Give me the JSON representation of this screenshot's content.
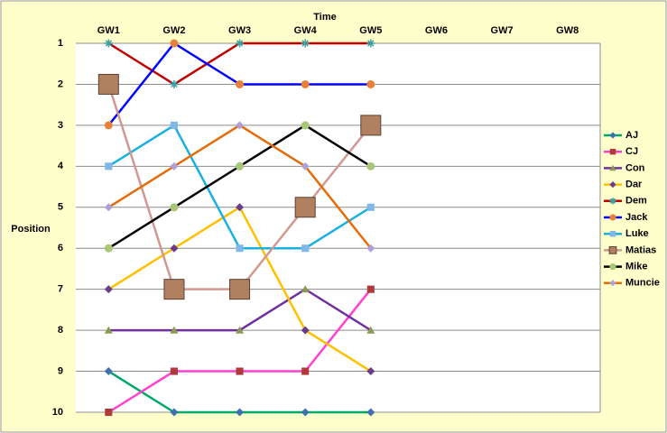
{
  "chart_data": {
    "type": "line",
    "x_title": "Time",
    "y_title": "Position",
    "categories": [
      "GW1",
      "GW2",
      "GW3",
      "GW4",
      "GW5",
      "GW6",
      "GW7",
      "GW8"
    ],
    "ylim": [
      1,
      10
    ],
    "y_reversed": true,
    "yticks": [
      1,
      2,
      3,
      4,
      5,
      6,
      7,
      8,
      9,
      10
    ],
    "x_axis_position": "top",
    "grid": true,
    "legend": "right",
    "series": [
      {
        "name": "AJ",
        "color": "#00a86b",
        "marker": "diamond",
        "marker_color": "#3f6fb0",
        "values": [
          9,
          10,
          10,
          10,
          10,
          null,
          null,
          null
        ]
      },
      {
        "name": "CJ",
        "color": "#ff40d0",
        "marker": "square",
        "marker_color": "#b03a3a",
        "values": [
          10,
          9,
          9,
          9,
          7,
          null,
          null,
          null
        ]
      },
      {
        "name": "Con",
        "color": "#7030a0",
        "marker": "triangle",
        "marker_color": "#8a9a50",
        "values": [
          8,
          8,
          8,
          7,
          8,
          null,
          null,
          null
        ]
      },
      {
        "name": "Dar",
        "color": "#ffc000",
        "marker": "diamond",
        "marker_color": "#6a3d8a",
        "values": [
          7,
          6,
          5,
          8,
          9,
          null,
          null,
          null
        ]
      },
      {
        "name": "Dem",
        "color": "#c00000",
        "marker": "star",
        "marker_color": "#3aa0a0",
        "values": [
          1,
          2,
          1,
          1,
          1,
          null,
          null,
          null
        ]
      },
      {
        "name": "Jack",
        "color": "#0000ff",
        "marker": "circle",
        "marker_color": "#e8803a",
        "values": [
          3,
          1,
          2,
          2,
          2,
          null,
          null,
          null
        ]
      },
      {
        "name": "Luke",
        "color": "#1ab0e0",
        "marker": "square",
        "marker_color": "#7fb8e8",
        "values": [
          4,
          3,
          6,
          6,
          5,
          null,
          null,
          null
        ]
      },
      {
        "name": "Matias",
        "color": "#d09890",
        "marker": "image",
        "marker_color": "#b08060",
        "values": [
          2,
          7,
          7,
          5,
          3,
          null,
          null,
          null
        ]
      },
      {
        "name": "Mike",
        "color": "#000000",
        "marker": "circle",
        "marker_color": "#a8c878",
        "values": [
          6,
          5,
          4,
          3,
          4,
          null,
          null,
          null
        ]
      },
      {
        "name": "Muncie",
        "color": "#e46c0a",
        "marker": "diamond",
        "marker_color": "#b0a0d8",
        "values": [
          5,
          4,
          3,
          4,
          6,
          null,
          null,
          null
        ]
      }
    ]
  }
}
